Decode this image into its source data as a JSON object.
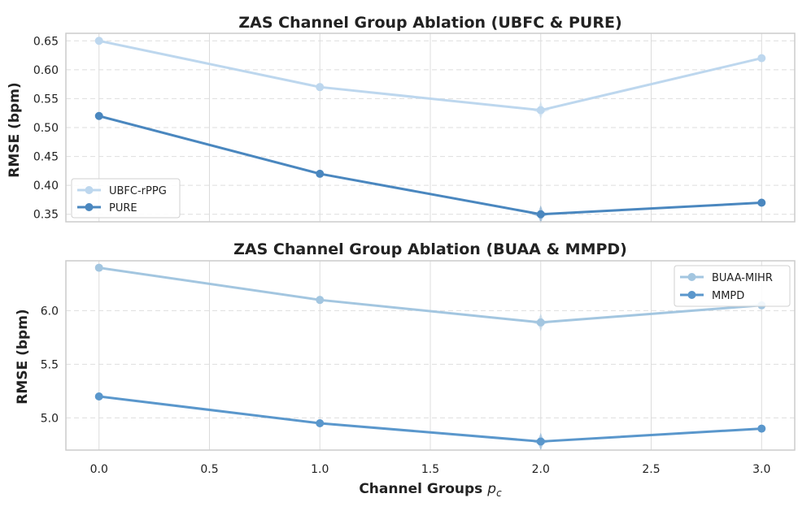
{
  "chart_data": [
    {
      "type": "line",
      "title": "ZAS Channel Group Ablation (UBFC & PURE)",
      "xlabel": "",
      "ylabel": "RMSE (bpm)",
      "x": [
        0,
        1,
        2,
        3
      ],
      "xlim": [
        -0.15,
        3.15
      ],
      "ylim": [
        0.337,
        0.663
      ],
      "yticks": [
        0.35,
        0.4,
        0.45,
        0.5,
        0.55,
        0.6,
        0.65
      ],
      "ytick_labels": [
        "0.35",
        "0.40",
        "0.45",
        "0.50",
        "0.55",
        "0.60",
        "0.65"
      ],
      "grid": true,
      "legend_position": "lower-left",
      "series": [
        {
          "name": "UBFC-rPPG",
          "color": "#bdd7ee",
          "values": [
            0.65,
            0.57,
            0.53,
            0.62
          ]
        },
        {
          "name": "PURE",
          "color": "#4a87bf",
          "values": [
            0.52,
            0.42,
            0.35,
            0.37
          ]
        }
      ],
      "best_marker_index": 2
    },
    {
      "type": "line",
      "title": "ZAS Channel Group Ablation (BUAA & MMPD)",
      "xlabel": "Channel Groups",
      "xlabel_symbol": "p",
      "xlabel_subscript": "c",
      "ylabel": "RMSE (bpm)",
      "x": [
        0,
        1,
        2,
        3
      ],
      "xlim": [
        -0.15,
        3.15
      ],
      "xticks": [
        0.0,
        0.5,
        1.0,
        1.5,
        2.0,
        2.5,
        3.0
      ],
      "xtick_labels": [
        "0.0",
        "0.5",
        "1.0",
        "1.5",
        "2.0",
        "2.5",
        "3.0"
      ],
      "ylim": [
        4.7,
        6.465
      ],
      "yticks": [
        5.0,
        5.5,
        6.0
      ],
      "ytick_labels": [
        "5.0",
        "5.5",
        "6.0"
      ],
      "grid": true,
      "legend_position": "top-right",
      "series": [
        {
          "name": "BUAA-MIHR",
          "color": "#a3c6e0",
          "values": [
            6.4,
            6.1,
            5.89,
            6.05
          ]
        },
        {
          "name": "MMPD",
          "color": "#5a97cc",
          "values": [
            5.2,
            4.95,
            4.78,
            4.9
          ]
        }
      ],
      "best_marker_index": 2
    }
  ]
}
